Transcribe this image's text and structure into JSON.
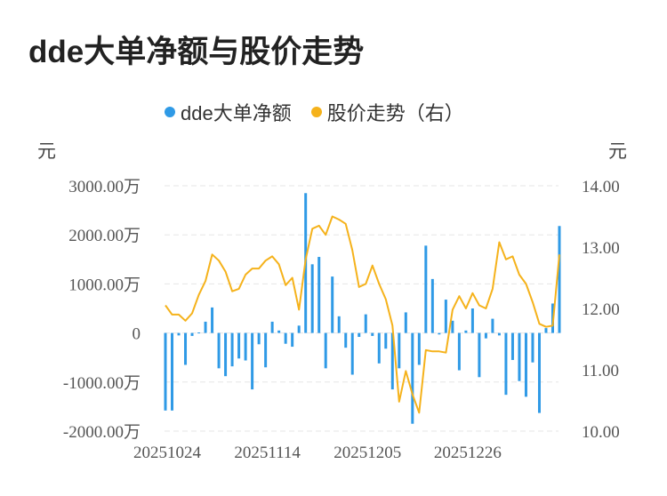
{
  "title": "dde大单净额与股价走势",
  "legend": [
    {
      "label": "dde大单净额",
      "color": "#2f9ae6"
    },
    {
      "label": "股价走势（右）",
      "color": "#f5b21b"
    }
  ],
  "units": {
    "left": "元",
    "right": "元"
  },
  "chart_data": {
    "type": "bar+line",
    "title": "dde大单净额与股价走势",
    "x_tick_labels": [
      "20251024",
      "20251114",
      "20251205",
      "20251226"
    ],
    "x_tick_indices": [
      0,
      15,
      30,
      45
    ],
    "left_axis": {
      "ticks": [
        "3000.00万",
        "2000.00万",
        "1000.00万",
        "0",
        "-1000.00万",
        "-2000.00万"
      ],
      "range": [
        -2000,
        3000
      ],
      "unit": "万元"
    },
    "right_axis": {
      "ticks": [
        "14.00",
        "13.00",
        "12.00",
        "11.00",
        "10.00"
      ],
      "range": [
        10,
        14
      ]
    },
    "gridlines": true,
    "legend_position": "top",
    "series": [
      {
        "name": "dde大单净额",
        "kind": "bar",
        "color": "#2f9ae6",
        "values": [
          -1580,
          -1580,
          -50,
          -650,
          -60,
          10,
          230,
          520,
          -720,
          -880,
          -680,
          -520,
          -560,
          -1150,
          -230,
          -700,
          230,
          50,
          -220,
          -280,
          150,
          2850,
          1400,
          1550,
          -720,
          1150,
          340,
          -300,
          -850,
          -80,
          380,
          -60,
          -620,
          -320,
          -1150,
          -720,
          420,
          -1850,
          -650,
          1780,
          1100,
          -30,
          680,
          250,
          -760,
          50,
          500,
          -900,
          -110,
          290,
          -50,
          -1260,
          -550,
          -980,
          -1300,
          -600,
          -1630,
          100,
          600,
          2180
        ]
      },
      {
        "name": "股价走势（右）",
        "kind": "line",
        "color": "#f5b21b",
        "values": [
          12.05,
          11.9,
          11.9,
          11.8,
          11.92,
          12.22,
          12.45,
          12.88,
          12.78,
          12.6,
          12.28,
          12.32,
          12.55,
          12.65,
          12.65,
          12.78,
          12.85,
          12.72,
          12.38,
          12.5,
          11.98,
          12.8,
          13.3,
          13.35,
          13.2,
          13.5,
          13.45,
          13.38,
          12.95,
          12.35,
          12.4,
          12.7,
          12.4,
          12.15,
          11.72,
          10.48,
          10.98,
          10.6,
          10.3,
          11.32,
          11.3,
          11.3,
          11.28,
          11.98,
          12.2,
          12.0,
          12.25,
          12.05,
          12.0,
          12.32,
          13.08,
          12.8,
          12.85,
          12.55,
          12.4,
          12.1,
          11.75,
          11.7,
          11.72,
          12.88
        ]
      }
    ]
  }
}
